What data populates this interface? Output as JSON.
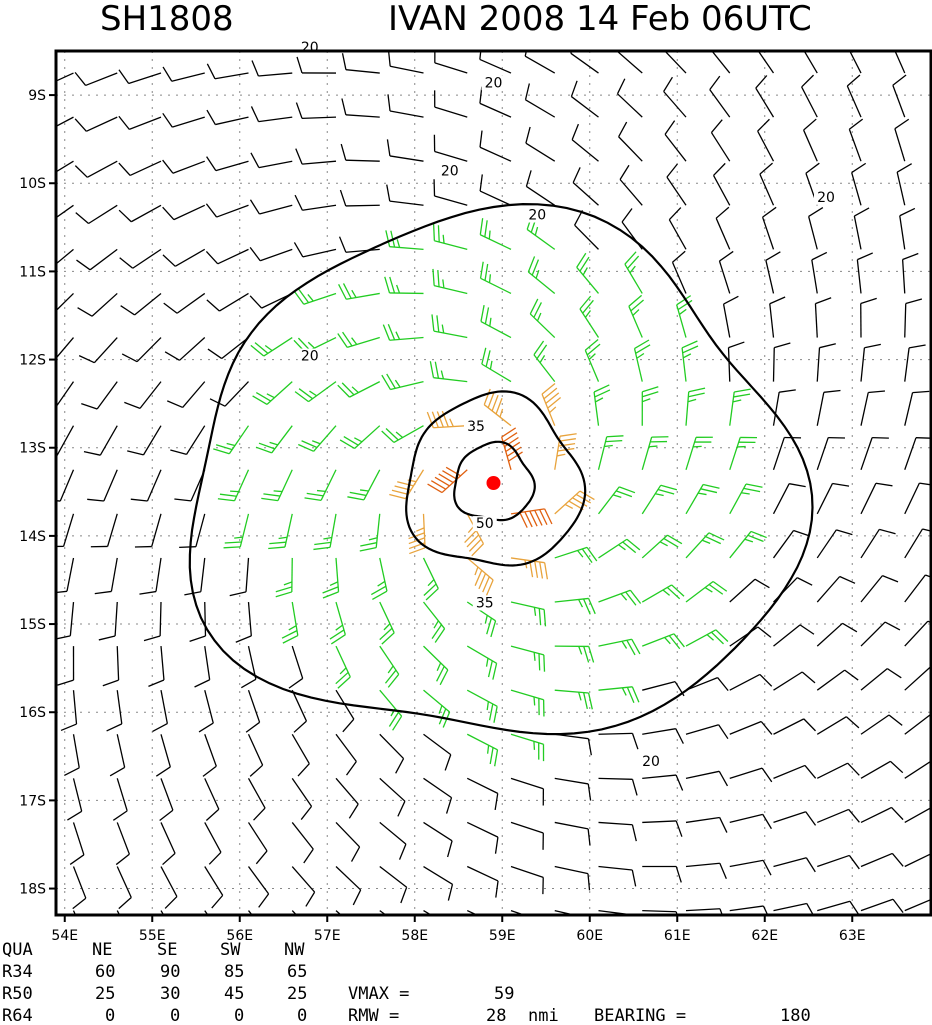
{
  "header": {
    "storm_id": "SH1808",
    "storm_time": "IVAN 2008 14 Feb 06UTC"
  },
  "chart_data": {
    "type": "wind-barb-map",
    "xlim": [
      53.9,
      63.9
    ],
    "ylim": [
      -18.3,
      -8.5
    ],
    "x_ticks": [
      54,
      55,
      56,
      57,
      58,
      59,
      60,
      61,
      62,
      63
    ],
    "x_tick_labels": [
      "54E",
      "55E",
      "56E",
      "57E",
      "58E",
      "59E",
      "60E",
      "61E",
      "62E",
      "63E"
    ],
    "y_ticks": [
      -9,
      -10,
      -11,
      -12,
      -13,
      -14,
      -15,
      -16,
      -17,
      -18
    ],
    "y_tick_labels": [
      "9S",
      "10S",
      "11S",
      "12S",
      "13S",
      "14S",
      "15S",
      "16S",
      "17S",
      "18S"
    ],
    "grid": true,
    "center": {
      "lon": 58.9,
      "lat": -13.4,
      "color": "#ff0000"
    },
    "contours": [
      {
        "level": 20,
        "label": "20",
        "radius_deg": 2.9,
        "labels_at": [
          [
            -12.0,
            56.8
          ],
          [
            -16.6,
            60.7
          ],
          [
            -10.4,
            59.4
          ],
          [
            -9.9,
            58.4
          ],
          [
            -8.9,
            58.9
          ],
          [
            -10.2,
            62.7
          ],
          [
            -8.5,
            56.8
          ]
        ]
      },
      {
        "level": 35,
        "label": "35",
        "radius_deg": 1.0,
        "labels_at": [
          [
            -12.8,
            58.7
          ],
          [
            -14.8,
            58.8
          ]
        ]
      },
      {
        "level": 50,
        "label": "50",
        "radius_deg": 0.45,
        "labels_at": [
          [
            -13.9,
            58.8
          ]
        ]
      }
    ],
    "barb_colors": {
      "weak": "#000000",
      "gale": "#22cc22",
      "storm": "#e8a33c",
      "hurricane": "#e06010"
    },
    "table": {
      "headers": [
        "QUA",
        "NE",
        "SE",
        "SW",
        "NW"
      ],
      "rows": [
        {
          "label": "R34",
          "values": [
            "60",
            "90",
            "85",
            "65"
          ]
        },
        {
          "label": "R50",
          "values": [
            "25",
            "30",
            "45",
            "25"
          ]
        },
        {
          "label": "R64",
          "values": [
            "0",
            "0",
            "0",
            "0"
          ]
        }
      ],
      "vmax_label": "VMAX  =",
      "vmax_value": "59",
      "rmw_label": "RMW   =",
      "rmw_value": "28",
      "rmw_unit": "nmi",
      "bearing_label": "BEARING =",
      "bearing_value": "180"
    }
  }
}
